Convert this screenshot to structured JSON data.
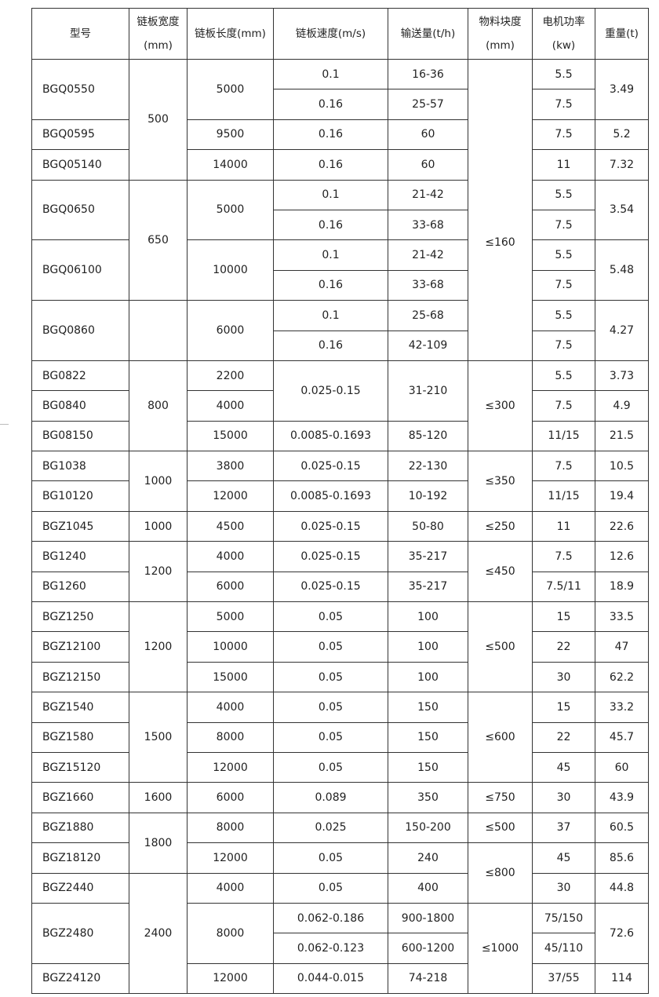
{
  "table": {
    "headers": [
      {
        "lines": [
          "型号"
        ]
      },
      {
        "lines": [
          "链板宽度",
          "(mm)"
        ]
      },
      {
        "lines": [
          "链板长度(mm)"
        ]
      },
      {
        "lines": [
          "链板速度(m/s)"
        ]
      },
      {
        "lines": [
          "输送量(t/h)"
        ]
      },
      {
        "lines": [
          "物料块度",
          "(mm)"
        ]
      },
      {
        "lines": [
          "电机功率",
          "(kw)"
        ]
      },
      {
        "lines": [
          "重量(t)"
        ]
      }
    ],
    "rows": [
      [
        {
          "v": "BGQ0550",
          "rs": 2
        },
        {
          "v": "500",
          "rs": 4
        },
        {
          "v": "5000",
          "rs": 2
        },
        {
          "v": "0.1"
        },
        {
          "v": "16-36"
        },
        {
          "v": "≤160",
          "rs": 10
        },
        {
          "v": "5.5"
        },
        {
          "v": "3.49",
          "rs": 2
        }
      ],
      [
        {
          "v": "0.16"
        },
        {
          "v": "25-57"
        },
        {
          "v": "7.5"
        }
      ],
      [
        {
          "v": "BGQ0595"
        },
        {
          "v": "9500"
        },
        {
          "v": "0.16"
        },
        {
          "v": "60"
        },
        {
          "v": "7.5"
        },
        {
          "v": "5.2"
        }
      ],
      [
        {
          "v": "BGQ05140"
        },
        {
          "v": "14000"
        },
        {
          "v": "0.16"
        },
        {
          "v": "60"
        },
        {
          "v": "11"
        },
        {
          "v": "7.32"
        }
      ],
      [
        {
          "v": "BGQ0650",
          "rs": 2
        },
        {
          "v": "650",
          "rs": 4
        },
        {
          "v": "5000",
          "rs": 2
        },
        {
          "v": "0.1"
        },
        {
          "v": "21-42"
        },
        {
          "v": "5.5"
        },
        {
          "v": "3.54",
          "rs": 2
        }
      ],
      [
        {
          "v": "0.16"
        },
        {
          "v": "33-68"
        },
        {
          "v": "7.5"
        }
      ],
      [
        {
          "v": "BGQ06100",
          "rs": 2
        },
        {
          "v": "10000",
          "rs": 2
        },
        {
          "v": "0.1"
        },
        {
          "v": "21-42"
        },
        {
          "v": "5.5"
        },
        {
          "v": "5.48",
          "rs": 2
        }
      ],
      [
        {
          "v": "0.16"
        },
        {
          "v": "33-68"
        },
        {
          "v": "7.5"
        }
      ],
      [
        {
          "v": "BGQ0860",
          "rs": 2
        },
        {
          "v": "",
          "rs": 2
        },
        {
          "v": "6000",
          "rs": 2
        },
        {
          "v": "0.1"
        },
        {
          "v": "25-68"
        },
        {
          "v": "5.5"
        },
        {
          "v": "4.27",
          "rs": 2
        }
      ],
      [
        {
          "v": "0.16"
        },
        {
          "v": "42-109"
        },
        {
          "v": "7.5"
        }
      ],
      [
        {
          "v": "BG0822"
        },
        {
          "v": "800",
          "rs": 3
        },
        {
          "v": "2200"
        },
        {
          "v": "0.025-0.15",
          "rs": 2
        },
        {
          "v": "31-210",
          "rs": 2
        },
        {
          "v": "≤300",
          "rs": 3
        },
        {
          "v": "5.5"
        },
        {
          "v": "3.73"
        }
      ],
      [
        {
          "v": "BG0840"
        },
        {
          "v": "4000"
        },
        {
          "v": "7.5"
        },
        {
          "v": "4.9"
        }
      ],
      [
        {
          "v": "BG08150"
        },
        {
          "v": "15000"
        },
        {
          "v": "0.0085-0.1693"
        },
        {
          "v": "85-120"
        },
        {
          "v": "11/15"
        },
        {
          "v": "21.5"
        }
      ],
      [
        {
          "v": "BG1038"
        },
        {
          "v": "1000",
          "rs": 2
        },
        {
          "v": "3800"
        },
        {
          "v": "0.025-0.15"
        },
        {
          "v": "22-130"
        },
        {
          "v": "≤350",
          "rs": 2
        },
        {
          "v": "7.5"
        },
        {
          "v": "10.5"
        }
      ],
      [
        {
          "v": "BG10120"
        },
        {
          "v": "12000"
        },
        {
          "v": "0.0085-0.1693"
        },
        {
          "v": "10-192"
        },
        {
          "v": "11/15"
        },
        {
          "v": "19.4"
        }
      ],
      [
        {
          "v": "BGZ1045"
        },
        {
          "v": "1000"
        },
        {
          "v": "4500"
        },
        {
          "v": "0.025-0.15"
        },
        {
          "v": "50-80"
        },
        {
          "v": "≤250"
        },
        {
          "v": "11"
        },
        {
          "v": "22.6"
        }
      ],
      [
        {
          "v": "BG1240"
        },
        {
          "v": "1200",
          "rs": 2
        },
        {
          "v": "4000"
        },
        {
          "v": "0.025-0.15"
        },
        {
          "v": "35-217"
        },
        {
          "v": "≤450",
          "rs": 2
        },
        {
          "v": "7.5"
        },
        {
          "v": "12.6"
        }
      ],
      [
        {
          "v": "BG1260"
        },
        {
          "v": "6000"
        },
        {
          "v": "0.025-0.15"
        },
        {
          "v": "35-217"
        },
        {
          "v": "7.5/11"
        },
        {
          "v": "18.9"
        }
      ],
      [
        {
          "v": "BGZ1250"
        },
        {
          "v": "1200",
          "rs": 3
        },
        {
          "v": "5000"
        },
        {
          "v": "0.05"
        },
        {
          "v": "100"
        },
        {
          "v": "≤500",
          "rs": 3
        },
        {
          "v": "15"
        },
        {
          "v": "33.5"
        }
      ],
      [
        {
          "v": "BGZ12100"
        },
        {
          "v": "10000"
        },
        {
          "v": "0.05"
        },
        {
          "v": "100"
        },
        {
          "v": "22"
        },
        {
          "v": "47"
        }
      ],
      [
        {
          "v": "BGZ12150"
        },
        {
          "v": "15000"
        },
        {
          "v": "0.05"
        },
        {
          "v": "100"
        },
        {
          "v": "30"
        },
        {
          "v": "62.2"
        }
      ],
      [
        {
          "v": "BGZ1540"
        },
        {
          "v": "1500",
          "rs": 3
        },
        {
          "v": "4000"
        },
        {
          "v": "0.05"
        },
        {
          "v": "150"
        },
        {
          "v": "≤600",
          "rs": 3
        },
        {
          "v": "15"
        },
        {
          "v": "33.2"
        }
      ],
      [
        {
          "v": "BGZ1580"
        },
        {
          "v": "8000"
        },
        {
          "v": "0.05"
        },
        {
          "v": "150"
        },
        {
          "v": "22"
        },
        {
          "v": "45.7"
        }
      ],
      [
        {
          "v": "BGZ15120"
        },
        {
          "v": "12000"
        },
        {
          "v": "0.05"
        },
        {
          "v": "150"
        },
        {
          "v": "45"
        },
        {
          "v": "60"
        }
      ],
      [
        {
          "v": "BGZ1660"
        },
        {
          "v": "1600"
        },
        {
          "v": "6000"
        },
        {
          "v": "0.089"
        },
        {
          "v": "350"
        },
        {
          "v": "≤750"
        },
        {
          "v": "30"
        },
        {
          "v": "43.9"
        }
      ],
      [
        {
          "v": "BGZ1880"
        },
        {
          "v": "1800",
          "rs": 2
        },
        {
          "v": "8000"
        },
        {
          "v": "0.025"
        },
        {
          "v": "150-200"
        },
        {
          "v": "≤500"
        },
        {
          "v": "37"
        },
        {
          "v": "60.5"
        }
      ],
      [
        {
          "v": "BGZ18120"
        },
        {
          "v": "12000"
        },
        {
          "v": "0.05"
        },
        {
          "v": "240"
        },
        {
          "v": "≤800",
          "rs": 2
        },
        {
          "v": "45"
        },
        {
          "v": "85.6"
        }
      ],
      [
        {
          "v": "BGZ2440"
        },
        {
          "v": "2400",
          "rs": 4
        },
        {
          "v": "4000"
        },
        {
          "v": "0.05"
        },
        {
          "v": "400"
        },
        {
          "v": "30"
        },
        {
          "v": "44.8"
        }
      ],
      [
        {
          "v": "BGZ2480",
          "rs": 2
        },
        {
          "v": "8000",
          "rs": 2
        },
        {
          "v": "0.062-0.186"
        },
        {
          "v": "900-1800"
        },
        {
          "v": "≤1000",
          "rs": 3
        },
        {
          "v": "75/150"
        },
        {
          "v": "72.6",
          "rs": 2
        }
      ],
      [
        {
          "v": "0.062-0.123"
        },
        {
          "v": "600-1200"
        },
        {
          "v": "45/110"
        }
      ],
      [
        {
          "v": "BGZ24120"
        },
        {
          "v": "12000"
        },
        {
          "v": "0.044-0.015"
        },
        {
          "v": "74-218"
        },
        {
          "v": "37/55"
        },
        {
          "v": "114"
        }
      ]
    ]
  }
}
